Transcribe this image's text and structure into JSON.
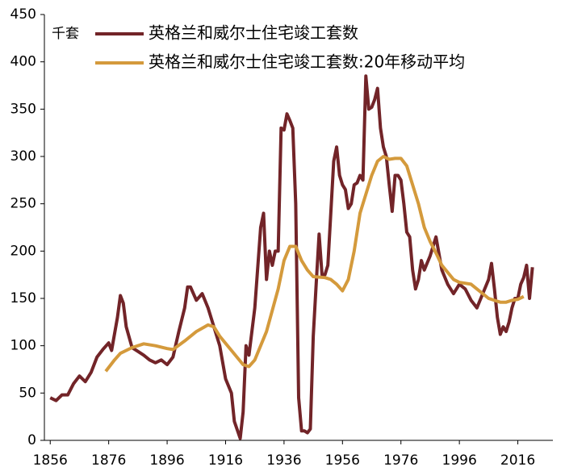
{
  "chart_data": {
    "type": "line",
    "unit_label": "千套",
    "xlim": [
      1854,
      2028
    ],
    "xticks": [
      1856,
      1876,
      1896,
      1916,
      1936,
      1956,
      1976,
      1996,
      2016
    ],
    "ylim": [
      0,
      450
    ],
    "yticks": [
      0,
      50,
      100,
      150,
      200,
      250,
      300,
      350,
      400,
      450
    ],
    "legend": "upper left",
    "series": [
      {
        "name": "英格兰和威尔士住宅竣工套数",
        "color": "#722428",
        "x": [
          1856,
          1858,
          1860,
          1862,
          1864,
          1866,
          1868,
          1870,
          1872,
          1874,
          1876,
          1877,
          1879,
          1880,
          1881,
          1882,
          1884,
          1886,
          1888,
          1890,
          1892,
          1894,
          1896,
          1898,
          1900,
          1902,
          1903,
          1904,
          1906,
          1908,
          1910,
          1912,
          1914,
          1916,
          1918,
          1919,
          1921,
          1922,
          1923,
          1924,
          1926,
          1928,
          1929,
          1930,
          1931,
          1932,
          1933,
          1934,
          1935,
          1936,
          1937,
          1938,
          1939,
          1940,
          1941,
          1942,
          1943,
          1944,
          1945,
          1946,
          1947,
          1948,
          1949,
          1950,
          1951,
          1952,
          1953,
          1954,
          1955,
          1956,
          1957,
          1958,
          1959,
          1960,
          1961,
          1962,
          1963,
          1964,
          1965,
          1966,
          1967,
          1968,
          1969,
          1970,
          1971,
          1972,
          1973,
          1974,
          1975,
          1976,
          1977,
          1978,
          1979,
          1980,
          1981,
          1982,
          1983,
          1984,
          1986,
          1988,
          1990,
          1992,
          1994,
          1996,
          1998,
          2000,
          2002,
          2004,
          2006,
          2007,
          2008,
          2009,
          2010,
          2011,
          2012,
          2013,
          2014,
          2015,
          2016,
          2017,
          2018,
          2019,
          2020,
          2021
        ],
        "values": [
          45,
          42,
          48,
          48,
          60,
          68,
          62,
          72,
          88,
          96,
          103,
          95,
          130,
          153,
          145,
          120,
          98,
          94,
          90,
          85,
          82,
          85,
          80,
          88,
          115,
          140,
          162,
          162,
          148,
          155,
          140,
          120,
          100,
          65,
          50,
          20,
          2,
          30,
          100,
          90,
          140,
          225,
          240,
          170,
          200,
          185,
          200,
          200,
          330,
          328,
          345,
          338,
          330,
          250,
          45,
          10,
          10,
          8,
          12,
          110,
          165,
          218,
          175,
          175,
          185,
          240,
          295,
          310,
          280,
          270,
          265,
          245,
          250,
          270,
          272,
          280,
          275,
          385,
          350,
          352,
          360,
          372,
          330,
          310,
          300,
          270,
          242,
          280,
          280,
          275,
          250,
          220,
          215,
          180,
          160,
          170,
          190,
          180,
          195,
          215,
          180,
          165,
          155,
          165,
          160,
          148,
          140,
          155,
          170,
          187,
          160,
          130,
          112,
          120,
          115,
          125,
          140,
          150,
          150,
          165,
          172,
          185,
          150,
          183
        ]
      },
      {
        "name": "英格兰和威尔士住宅竣工套数:20年移动平均",
        "color": "#d49a3c",
        "x": [
          1875,
          1878,
          1880,
          1884,
          1888,
          1892,
          1896,
          1898,
          1902,
          1906,
          1910,
          1912,
          1914,
          1918,
          1922,
          1924,
          1926,
          1930,
          1934,
          1936,
          1938,
          1940,
          1942,
          1944,
          1946,
          1950,
          1952,
          1954,
          1956,
          1958,
          1960,
          1962,
          1964,
          1966,
          1968,
          1970,
          1972,
          1974,
          1976,
          1978,
          1980,
          1982,
          1984,
          1986,
          1988,
          1990,
          1994,
          1996,
          2000,
          2002,
          2004,
          2006,
          2008,
          2010,
          2012,
          2014,
          2016,
          2018
        ],
        "values": [
          73,
          85,
          92,
          98,
          102,
          100,
          97,
          96,
          105,
          115,
          122,
          120,
          110,
          95,
          80,
          78,
          85,
          115,
          160,
          190,
          205,
          205,
          190,
          180,
          173,
          172,
          170,
          165,
          158,
          170,
          200,
          240,
          260,
          280,
          295,
          300,
          297,
          298,
          298,
          290,
          270,
          250,
          225,
          210,
          198,
          185,
          170,
          167,
          165,
          160,
          155,
          150,
          148,
          146,
          146,
          148,
          149,
          152
        ]
      }
    ]
  }
}
